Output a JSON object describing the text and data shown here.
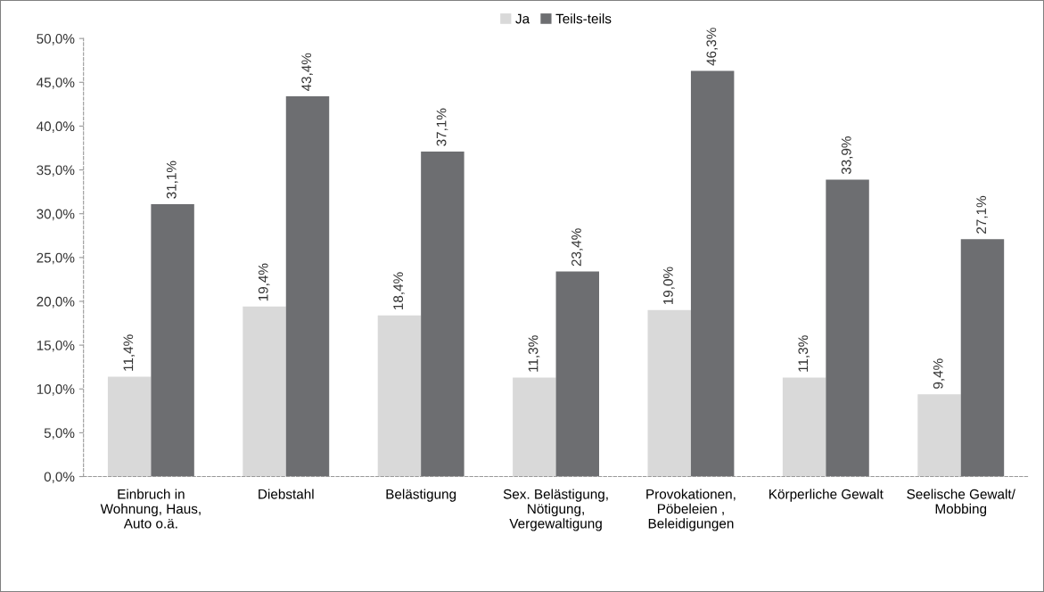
{
  "chart_data": {
    "type": "bar",
    "categories": [
      "Einbruch in\nWohnung, Haus,\nAuto o.ä.",
      "Diebstahl",
      "Belästigung",
      "Sex. Belästigung,\nNötigung,\nVergewaltigung",
      "Provokationen,\nPöbeleien ,\nBeleidigungen",
      "Körperliche Gewalt",
      "Seelische Gewalt/\nMobbing"
    ],
    "series": [
      {
        "name": "Ja",
        "color": "#d9d9d9",
        "values": [
          11.4,
          19.4,
          18.4,
          11.3,
          19.0,
          11.3,
          9.4
        ],
        "value_labels": [
          "11,4%",
          "19,4%",
          "18,4%",
          "11,3%",
          "19,0%",
          "11,3%",
          "9,4%"
        ]
      },
      {
        "name": "Teils-teils",
        "color": "#6d6e71",
        "values": [
          31.1,
          43.4,
          37.1,
          23.4,
          46.3,
          33.9,
          27.1
        ],
        "value_labels": [
          "31,1%",
          "43,4%",
          "37,1%",
          "23,4%",
          "46,3%",
          "33,9%",
          "27,1%"
        ]
      }
    ],
    "ylim": [
      0,
      50
    ],
    "yticks": [
      {
        "value": 0,
        "label": "0,0%"
      },
      {
        "value": 5,
        "label": "5,0%"
      },
      {
        "value": 10,
        "label": "10,0%"
      },
      {
        "value": 15,
        "label": "15,0%"
      },
      {
        "value": 20,
        "label": "20,0%"
      },
      {
        "value": 25,
        "label": "25,0%"
      },
      {
        "value": 30,
        "label": "30,0%"
      },
      {
        "value": 35,
        "label": "35,0%"
      },
      {
        "value": 40,
        "label": "40,0%"
      },
      {
        "value": 45,
        "label": "45,0%"
      },
      {
        "value": 50,
        "label": "50,0%"
      }
    ],
    "grid": false,
    "legend": "top"
  }
}
